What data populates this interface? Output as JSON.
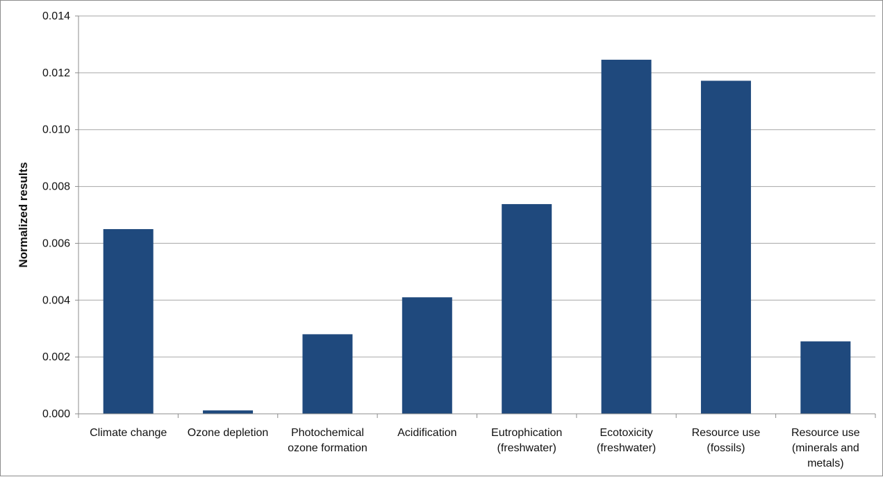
{
  "chart_data": {
    "type": "bar",
    "categories": [
      [
        "Climate change"
      ],
      [
        "Ozone depletion"
      ],
      [
        "Photochemical",
        "ozone formation"
      ],
      [
        "Acidification"
      ],
      [
        "Eutrophication",
        "(freshwater)"
      ],
      [
        "Ecotoxicity",
        "(freshwater)"
      ],
      [
        "Resource use",
        "(fossils)"
      ],
      [
        "Resource use",
        "(minerals and",
        "metals)"
      ]
    ],
    "values": [
      0.0065,
      0.00012,
      0.0028,
      0.0041,
      0.00738,
      0.01246,
      0.01172,
      0.00255
    ],
    "ylabel": "Normalized results",
    "xlabel": "",
    "title": "",
    "ylim": [
      0,
      0.014
    ],
    "y_ticks": [
      "0.000",
      "0.002",
      "0.004",
      "0.006",
      "0.008",
      "0.010",
      "0.012",
      "0.014"
    ],
    "grid": true,
    "legend": "none",
    "bar_color": "#1f497d"
  }
}
